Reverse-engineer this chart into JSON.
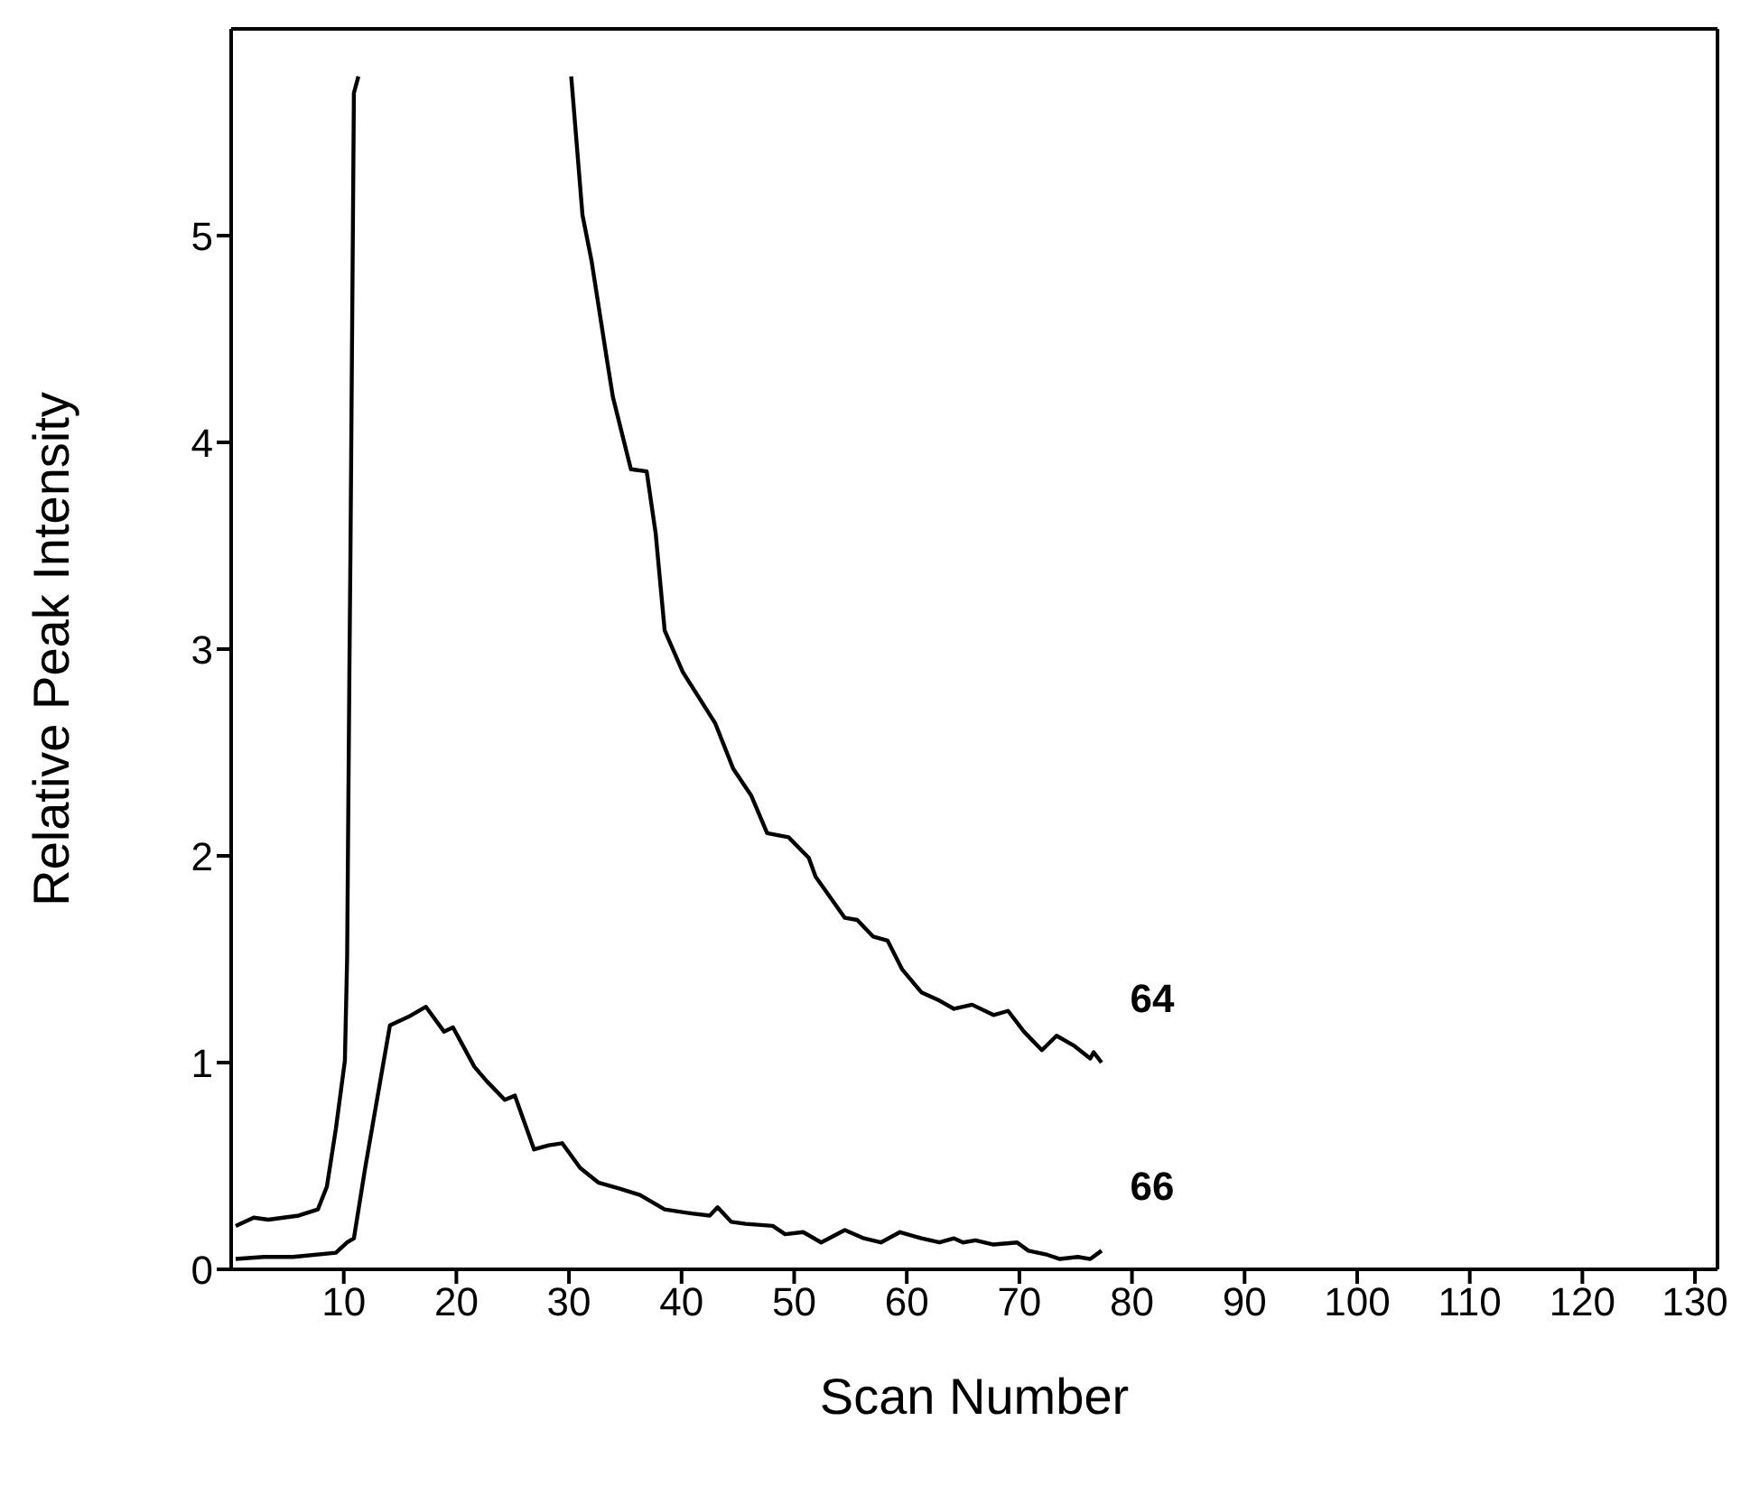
{
  "chart_data": {
    "type": "line",
    "xlabel": "Scan Number",
    "ylabel": "Relative Peak Intensity",
    "xlim": [
      0,
      132
    ],
    "xticks": [
      10,
      20,
      30,
      40,
      50,
      60,
      70,
      80,
      90,
      100,
      110,
      120,
      130
    ],
    "ylim": [
      0,
      6
    ],
    "yticks": [
      0,
      1,
      2,
      3,
      4,
      5
    ],
    "legend": false,
    "marker": "none",
    "line_style": "solid",
    "series": [
      {
        "name": "64",
        "color": "#000000",
        "x": [
          0.4,
          2,
          3.3,
          6,
          7.7,
          8.5,
          9.3,
          10.1,
          10.3,
          10.5,
          10.6,
          10.9,
          11.3,
          12.1,
          20,
          29.4,
          30.2,
          31.2,
          32,
          33.4,
          33.9,
          35.5,
          36.9,
          37.7,
          38.5,
          40.1,
          43,
          44.6,
          46.2,
          47.6,
          49.5,
          51.3,
          51.9,
          54.5,
          55.6,
          57,
          58.3,
          59.6,
          61.3,
          62.9,
          64.2,
          65.8,
          67.7,
          69,
          70.4,
          72,
          73.3,
          74.9,
          76.3,
          76.6,
          77.3
        ],
        "values": [
          0.21,
          0.25,
          0.24,
          0.26,
          0.29,
          0.4,
          0.68,
          1.01,
          1.51,
          2.89,
          3.5,
          5.69,
          5.77,
          null,
          null,
          null,
          5.77,
          5.1,
          4.88,
          4.39,
          4.22,
          3.87,
          3.86,
          3.56,
          3.09,
          2.89,
          2.64,
          2.42,
          2.29,
          2.11,
          2.09,
          1.99,
          1.9,
          1.7,
          1.69,
          1.61,
          1.59,
          1.45,
          1.34,
          1.3,
          1.26,
          1.28,
          1.23,
          1.25,
          1.15,
          1.06,
          1.13,
          1.08,
          1.02,
          1.05,
          1.0
        ]
      },
      {
        "name": "66",
        "color": "#000000",
        "x": [
          0.4,
          2.9,
          5.5,
          9.3,
          10.3,
          10.9,
          11.9,
          13.3,
          14.1,
          15.7,
          17.3,
          18.9,
          19.7,
          21.6,
          22.7,
          24.3,
          25.2,
          26.9,
          28.2,
          29.4,
          31,
          32.6,
          34.5,
          36.3,
          38.5,
          40.9,
          42.5,
          43.2,
          44.4,
          45.7,
          48.1,
          49.2,
          50.8,
          52.4,
          54.5,
          56.2,
          57.7,
          59.4,
          61.3,
          62.9,
          64.2,
          65,
          66.1,
          67.7,
          69.8,
          70.8,
          72.5,
          73.6,
          75.2,
          76.3,
          77.3
        ],
        "values": [
          0.05,
          0.06,
          0.06,
          0.08,
          0.13,
          0.15,
          0.49,
          0.93,
          1.18,
          1.22,
          1.27,
          1.15,
          1.17,
          0.98,
          0.91,
          0.82,
          0.84,
          0.58,
          0.6,
          0.61,
          0.49,
          0.42,
          0.39,
          0.36,
          0.29,
          0.27,
          0.26,
          0.3,
          0.23,
          0.22,
          0.21,
          0.17,
          0.18,
          0.13,
          0.19,
          0.15,
          0.13,
          0.18,
          0.15,
          0.13,
          0.15,
          0.13,
          0.14,
          0.12,
          0.13,
          0.09,
          0.07,
          0.05,
          0.06,
          0.05,
          0.09
        ]
      }
    ]
  }
}
